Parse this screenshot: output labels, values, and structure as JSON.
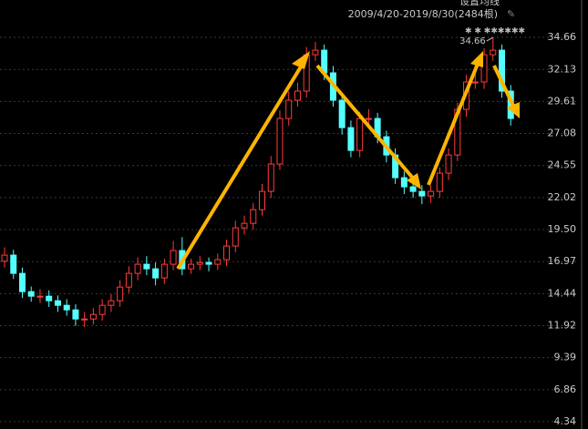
{
  "chart_data": {
    "type": "candlestick",
    "title": "设置均线",
    "subtitle": "2009/4/20-2019/8/30(2484根)",
    "annotations": [
      {
        "text": "34.66"
      }
    ],
    "up_color": "#ff3c3c",
    "down_color": "#54ffff",
    "ylim": [
      3.76,
      37.61
    ],
    "yticks": [
      {
        "value": 34.66,
        "label": "34.66"
      },
      {
        "value": 32.13,
        "label": "32.13"
      },
      {
        "value": 29.61,
        "label": "29.61"
      },
      {
        "value": 27.08,
        "label": "27.08"
      },
      {
        "value": 24.55,
        "label": "24.55"
      },
      {
        "value": 22.02,
        "label": "22.02"
      },
      {
        "value": 19.5,
        "label": "19.50"
      },
      {
        "value": 16.97,
        "label": "16.97"
      },
      {
        "value": 14.44,
        "label": "14.44"
      },
      {
        "value": 11.92,
        "label": "11.92"
      },
      {
        "value": 9.39,
        "label": "9.39"
      },
      {
        "value": 6.86,
        "label": "6.86"
      },
      {
        "value": 4.34,
        "label": "4.34"
      }
    ],
    "grid": true,
    "open": [
      17.0,
      17.48,
      16.04,
      14.6,
      14.24,
      14.24,
      13.88,
      13.52,
      13.16,
      12.44,
      12.44,
      12.8,
      13.52,
      13.88,
      14.96,
      16.04,
      16.76,
      16.4,
      15.68,
      16.76,
      17.84,
      16.4,
      16.76,
      16.9,
      16.76,
      17.12,
      18.2,
      19.63,
      19.99,
      21.07,
      22.51,
      24.67,
      28.26,
      29.7,
      30.42,
      33.29,
      33.65,
      31.86,
      29.7,
      27.54,
      25.74,
      28.26,
      28.26,
      26.82,
      25.38,
      23.59,
      22.87,
      22.51,
      22.15,
      22.51,
      23.95,
      25.38,
      28.98,
      31.14,
      31.14,
      33.29,
      33.65,
      30.42
    ],
    "high": [
      18.1,
      17.9,
      16.5,
      15.0,
      14.8,
      14.7,
      14.3,
      14.0,
      13.6,
      13.0,
      13.3,
      14.0,
      14.4,
      15.5,
      16.6,
      17.3,
      17.4,
      16.9,
      17.2,
      18.6,
      18.9,
      17.2,
      17.4,
      17.3,
      17.6,
      18.7,
      20.2,
      20.6,
      21.6,
      23.1,
      25.3,
      28.9,
      30.4,
      31.1,
      33.9,
      34.3,
      34.1,
      32.4,
      30.3,
      28.1,
      28.8,
      29.0,
      28.7,
      27.3,
      25.9,
      24.1,
      23.3,
      23.0,
      23.0,
      24.4,
      25.9,
      29.5,
      31.7,
      31.8,
      33.8,
      34.66,
      34.1,
      30.9
    ],
    "low": [
      16.5,
      15.6,
      14.1,
      13.8,
      13.7,
      13.4,
      13.0,
      12.7,
      11.9,
      11.8,
      12.0,
      12.3,
      13.0,
      13.4,
      14.5,
      15.5,
      15.9,
      15.1,
      15.2,
      16.3,
      15.9,
      16.0,
      16.3,
      16.2,
      16.3,
      16.6,
      17.7,
      19.1,
      19.5,
      20.6,
      22.0,
      24.2,
      27.7,
      29.2,
      29.9,
      32.8,
      31.3,
      29.2,
      27.0,
      25.2,
      25.2,
      27.7,
      26.3,
      24.8,
      23.1,
      22.3,
      22.0,
      21.5,
      21.6,
      22.0,
      23.4,
      24.9,
      28.4,
      30.6,
      30.6,
      32.8,
      29.9,
      27.7
    ],
    "close": [
      17.48,
      16.04,
      14.6,
      14.24,
      14.24,
      13.88,
      13.52,
      13.16,
      12.44,
      12.44,
      12.8,
      13.52,
      13.88,
      14.96,
      16.04,
      16.76,
      16.4,
      15.68,
      16.76,
      17.84,
      16.4,
      16.76,
      16.9,
      16.76,
      17.12,
      18.2,
      19.63,
      19.99,
      21.07,
      22.51,
      24.67,
      28.26,
      29.7,
      30.42,
      33.29,
      33.65,
      31.86,
      29.7,
      27.54,
      25.74,
      28.26,
      28.26,
      26.82,
      25.38,
      23.59,
      22.87,
      22.51,
      22.15,
      22.51,
      23.95,
      25.38,
      28.98,
      31.14,
      31.14,
      33.29,
      33.65,
      30.42,
      28.26
    ]
  }
}
